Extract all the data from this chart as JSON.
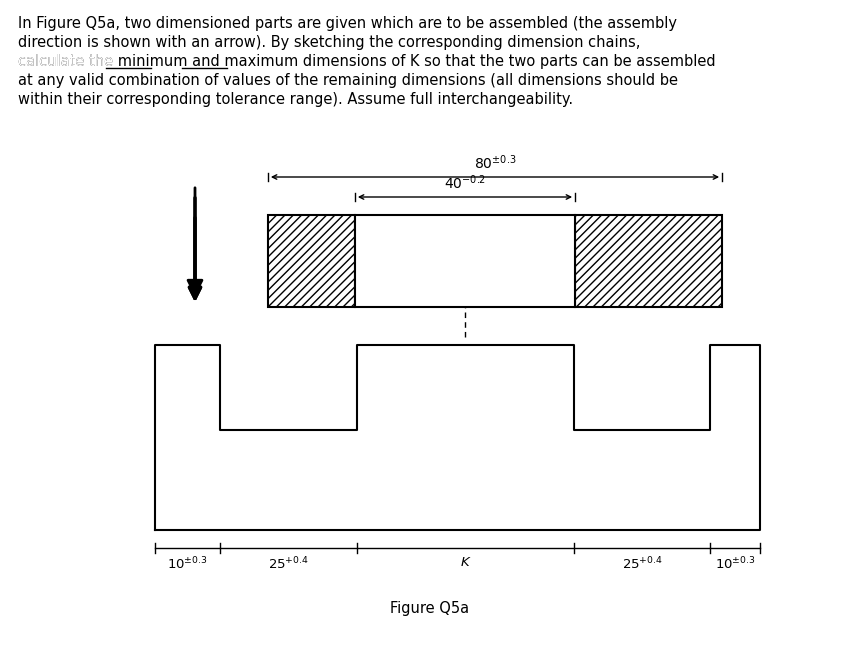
{
  "text_block": "In Figure Q5a, two dimensioned parts are given which are to be assembled (the assembly\ndirection is shown with an arrow). By sketching the corresponding dimension chains,\ncalculate the minimum and maximum dimensions of K so that the two parts can be assembled\nat any valid combination of values of the remaining dimensions (all dimensions should be\nwithin their corresponding tolerance range). Assume full interchangeability.",
  "underline_words": [
    "minimum",
    "maximum"
  ],
  "figure_label": "Figure Q5a",
  "dim_80": "80±0.3",
  "dim_40": "40⁻0.2",
  "dim_10_left": "10±0.3",
  "dim_25_left": "25⁺0.4",
  "dim_K": "K",
  "dim_25_right": "25⁺0.4",
  "dim_10_right": "10±0.3",
  "bg_color": "#ffffff",
  "line_color": "#000000",
  "hatch_pattern": "///",
  "superscript_fontsize": 7,
  "label_fontsize": 9
}
